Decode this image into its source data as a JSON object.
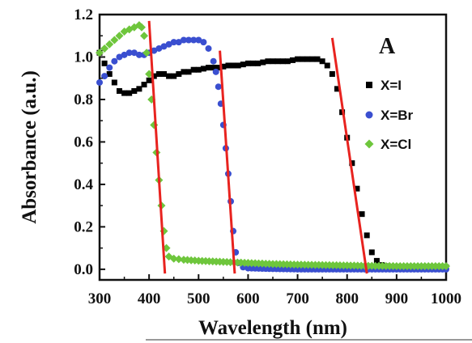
{
  "chart_data": {
    "type": "scatter",
    "panel_label": "A",
    "xlabel": "Wavelength (nm)",
    "ylabel": "Absorbance (a.u.)",
    "xlim": [
      300,
      1000
    ],
    "ylim": [
      -0.05,
      1.2
    ],
    "x_ticks": [
      "300",
      "400",
      "500",
      "600",
      "700",
      "800",
      "900",
      "1000"
    ],
    "y_ticks": [
      "0.0",
      "0.2",
      "0.4",
      "0.6",
      "0.8",
      "1.0",
      "1.2"
    ],
    "grid": false,
    "legend_position": "right",
    "series": [
      {
        "name": "X=I",
        "marker": "square",
        "color": "#000000",
        "points": [
          [
            300,
            1.02
          ],
          [
            310,
            0.97
          ],
          [
            320,
            0.92
          ],
          [
            330,
            0.88
          ],
          [
            340,
            0.84
          ],
          [
            350,
            0.83
          ],
          [
            360,
            0.83
          ],
          [
            370,
            0.84
          ],
          [
            380,
            0.85
          ],
          [
            390,
            0.87
          ],
          [
            400,
            0.89
          ],
          [
            410,
            0.91
          ],
          [
            420,
            0.92
          ],
          [
            430,
            0.92
          ],
          [
            440,
            0.91
          ],
          [
            450,
            0.91
          ],
          [
            460,
            0.92
          ],
          [
            470,
            0.93
          ],
          [
            480,
            0.93
          ],
          [
            490,
            0.94
          ],
          [
            500,
            0.94
          ],
          [
            520,
            0.95
          ],
          [
            540,
            0.95
          ],
          [
            560,
            0.96
          ],
          [
            580,
            0.96
          ],
          [
            600,
            0.97
          ],
          [
            620,
            0.97
          ],
          [
            640,
            0.98
          ],
          [
            660,
            0.98
          ],
          [
            680,
            0.98
          ],
          [
            700,
            0.99
          ],
          [
            720,
            0.99
          ],
          [
            740,
            0.99
          ],
          [
            750,
            0.98
          ],
          [
            760,
            0.96
          ],
          [
            770,
            0.92
          ],
          [
            780,
            0.85
          ],
          [
            790,
            0.74
          ],
          [
            800,
            0.62
          ],
          [
            810,
            0.5
          ],
          [
            820,
            0.38
          ],
          [
            830,
            0.26
          ],
          [
            840,
            0.16
          ],
          [
            850,
            0.08
          ],
          [
            860,
            0.04
          ],
          [
            870,
            0.02
          ],
          [
            880,
            0.015
          ],
          [
            900,
            0.01
          ],
          [
            920,
            0.01
          ],
          [
            940,
            0.01
          ],
          [
            960,
            0.01
          ],
          [
            980,
            0.01
          ],
          [
            1000,
            0.01
          ]
        ]
      },
      {
        "name": "X=Br",
        "marker": "circle",
        "color": "#3a4fd0",
        "points": [
          [
            300,
            0.88
          ],
          [
            310,
            0.91
          ],
          [
            320,
            0.95
          ],
          [
            330,
            0.98
          ],
          [
            340,
            1.0
          ],
          [
            350,
            1.01
          ],
          [
            360,
            1.02
          ],
          [
            370,
            1.02
          ],
          [
            380,
            1.01
          ],
          [
            390,
            1.01
          ],
          [
            400,
            1.02
          ],
          [
            410,
            1.03
          ],
          [
            420,
            1.04
          ],
          [
            430,
            1.05
          ],
          [
            440,
            1.06
          ],
          [
            450,
            1.07
          ],
          [
            460,
            1.07
          ],
          [
            470,
            1.08
          ],
          [
            480,
            1.08
          ],
          [
            490,
            1.08
          ],
          [
            500,
            1.08
          ],
          [
            510,
            1.07
          ],
          [
            520,
            1.04
          ],
          [
            530,
            0.98
          ],
          [
            535,
            0.93
          ],
          [
            540,
            0.86
          ],
          [
            545,
            0.78
          ],
          [
            550,
            0.68
          ],
          [
            555,
            0.57
          ],
          [
            560,
            0.45
          ],
          [
            565,
            0.32
          ],
          [
            570,
            0.18
          ],
          [
            575,
            0.08
          ],
          [
            580,
            0.03
          ],
          [
            590,
            0.01
          ],
          [
            600,
            0.005
          ],
          [
            650,
            0.002
          ],
          [
            700,
            0.0
          ],
          [
            750,
            0.0
          ],
          [
            800,
            0.0
          ],
          [
            850,
            0.0
          ],
          [
            900,
            0.0
          ],
          [
            950,
            0.0
          ],
          [
            1000,
            0.0
          ]
        ]
      },
      {
        "name": "X=Cl",
        "marker": "diamond",
        "color": "#6ec63c",
        "points": [
          [
            300,
            1.02
          ],
          [
            310,
            1.04
          ],
          [
            320,
            1.06
          ],
          [
            330,
            1.08
          ],
          [
            340,
            1.1
          ],
          [
            350,
            1.12
          ],
          [
            360,
            1.13
          ],
          [
            370,
            1.14
          ],
          [
            380,
            1.15
          ],
          [
            385,
            1.14
          ],
          [
            390,
            1.1
          ],
          [
            395,
            1.02
          ],
          [
            400,
            0.92
          ],
          [
            405,
            0.8
          ],
          [
            410,
            0.68
          ],
          [
            415,
            0.55
          ],
          [
            420,
            0.42
          ],
          [
            425,
            0.3
          ],
          [
            430,
            0.18
          ],
          [
            435,
            0.1
          ],
          [
            440,
            0.06
          ],
          [
            450,
            0.05
          ],
          [
            470,
            0.045
          ],
          [
            500,
            0.04
          ],
          [
            550,
            0.035
          ],
          [
            600,
            0.03
          ],
          [
            650,
            0.025
          ],
          [
            700,
            0.022
          ],
          [
            750,
            0.02
          ],
          [
            800,
            0.018
          ],
          [
            850,
            0.016
          ],
          [
            900,
            0.015
          ],
          [
            950,
            0.015
          ],
          [
            1000,
            0.015
          ]
        ]
      }
    ],
    "tangent_lines": [
      {
        "series": "X=Cl",
        "x": [
          400,
          432
        ],
        "y": [
          1.17,
          -0.02
        ]
      },
      {
        "series": "X=Br",
        "x": [
          543,
          573
        ],
        "y": [
          1.03,
          -0.02
        ]
      },
      {
        "series": "X=I",
        "x": [
          770,
          840
        ],
        "y": [
          1.09,
          -0.02
        ]
      }
    ],
    "tangent_color": "#e8231f"
  }
}
